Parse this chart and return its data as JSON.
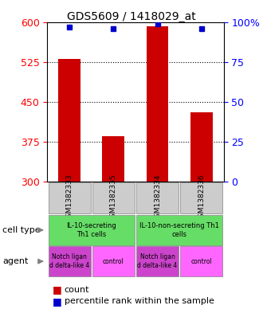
{
  "title": "GDS5609 / 1418029_at",
  "samples": [
    "GSM1382333",
    "GSM1382335",
    "GSM1382334",
    "GSM1382336"
  ],
  "bar_values": [
    530,
    385,
    592,
    430
  ],
  "bar_bottom": 300,
  "percentile_values": [
    97,
    96,
    99,
    96
  ],
  "ylim_left": [
    300,
    600
  ],
  "ylim_right": [
    0,
    100
  ],
  "yticks_left": [
    300,
    375,
    450,
    525,
    600
  ],
  "yticks_right": [
    0,
    25,
    50,
    75,
    100
  ],
  "ytick_labels_right": [
    "0",
    "25",
    "50",
    "75",
    "100%"
  ],
  "bar_color": "#cc0000",
  "dot_color": "#0000cc",
  "cell_type_labels": [
    "IL-10-secreting\nTh1 cells",
    "IL-10-non-secreting Th1\ncells"
  ],
  "agent_labels": [
    "Notch ligan\nd delta-like 4",
    "control",
    "Notch ligan\nd delta-like 4",
    "control"
  ],
  "background_color": "#ffffff",
  "label_row1": "cell type",
  "label_row2": "agent",
  "legend_count_color": "#cc0000",
  "legend_dot_color": "#0000cc",
  "sample_box_color": "#cccccc",
  "cell_type_color": "#66dd66",
  "agent_notch_color": "#cc44cc",
  "agent_control_color": "#ff66ff"
}
